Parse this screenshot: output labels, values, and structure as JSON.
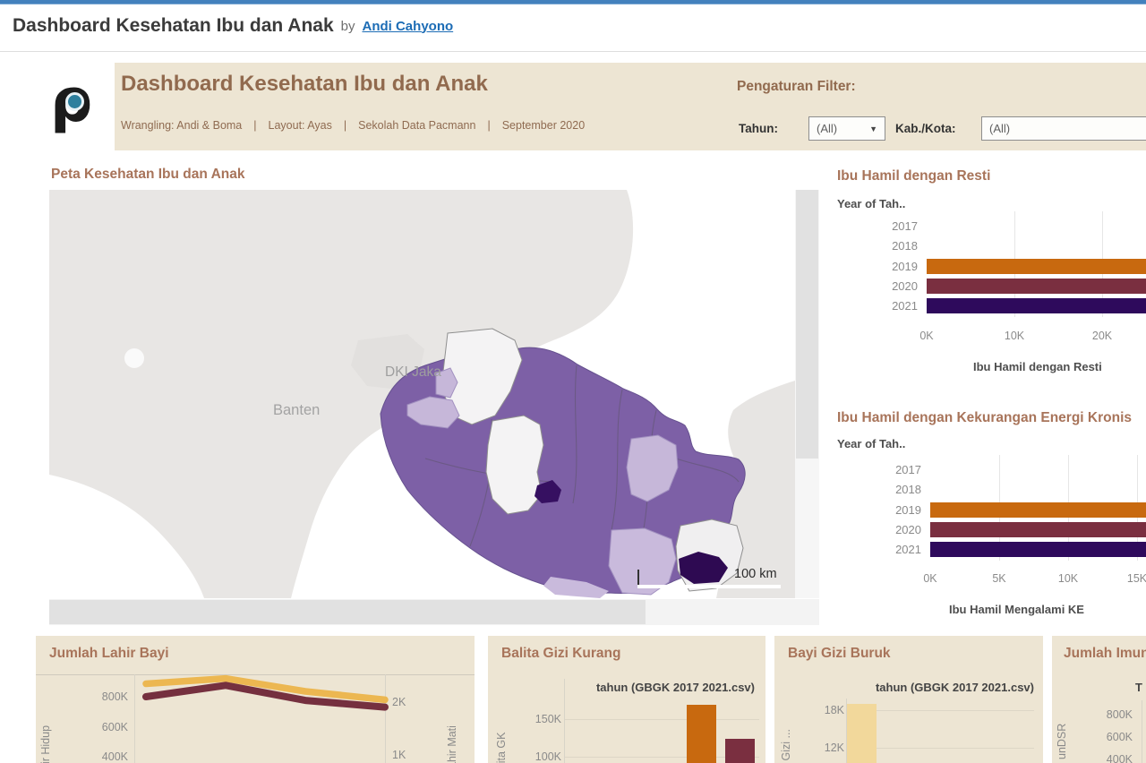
{
  "top_bar": {
    "title": "Dashboard Kesehatan Ibu dan Anak",
    "by": "by",
    "author_link": "Andi Cahyono"
  },
  "header": {
    "title": "Dashboard Kesehatan Ibu dan Anak",
    "credits": [
      "Wrangling: Andi & Boma",
      "Layout: Ayas",
      "Sekolah Data Pacmann",
      "September 2020"
    ],
    "separator": "|",
    "filter": {
      "heading": "Pengaturan Filter:",
      "tahun_label": "Tahun:",
      "tahun_value": "(All)",
      "kab_label": "Kab./Kota:",
      "kab_value": "(All)"
    }
  },
  "map": {
    "title": "Peta Kesehatan Ibu dan Anak",
    "labels": {
      "banten": "Banten",
      "dki": "DKI Jaka",
      "scale": "100 km"
    },
    "colors": {
      "region_medium": "#7d60a6",
      "region_light": "#c6b7d9",
      "region_dark": "#2e0a52",
      "region_none": "#f4f3f4",
      "base_land": "#e8e6e4"
    }
  },
  "colors": {
    "accent_orange": "#c8690f",
    "accent_maroon": "#7a2f40",
    "accent_darkpurple": "#2e0a5c",
    "accent_yellow": "#ecb751",
    "accent_lightyellow": "#f2d89b",
    "header_beige": "#ede5d3",
    "title_brown": "#a8745a"
  },
  "chart_data": [
    {
      "id": "ibu_resti",
      "type": "bar",
      "orientation": "horizontal",
      "title": "Ibu Hamil dengan Resti",
      "col_header": "Year of Tah..",
      "categories": [
        "2017",
        "2018",
        "2019",
        "2020",
        "2021"
      ],
      "values_k": [
        0,
        0,
        26,
        26,
        26
      ],
      "bar_colors": [
        null,
        null,
        "#c8690f",
        "#7a2f40",
        "#2e0a5c"
      ],
      "x_ticks": [
        "0K",
        "10K",
        "20K"
      ],
      "xlabel": "Ibu Hamil dengan Resti",
      "note": "2019-2021 bars extend past the visible right edge (>25K); 2017-2018 show no bars"
    },
    {
      "id": "ibu_kek",
      "type": "bar",
      "orientation": "horizontal",
      "title": "Ibu Hamil dengan Kekurangan Energi Kronis",
      "col_header": "Year of Tah..",
      "categories": [
        "2017",
        "2018",
        "2019",
        "2020",
        "2021"
      ],
      "values_k": [
        0,
        0,
        16,
        16,
        16
      ],
      "bar_colors": [
        null,
        null,
        "#c8690f",
        "#7a2f40",
        "#2e0a5c"
      ],
      "x_ticks": [
        "0K",
        "5K",
        "10K",
        "15K"
      ],
      "xlabel": "Ibu Hamil Mengalami KE",
      "note": "2019-2021 bars extend past the visible right edge (>15.5K)"
    },
    {
      "id": "lahir_bayi",
      "type": "line",
      "title": "Jumlah Lahir Bayi",
      "left_axis": {
        "label": "hir Hidup",
        "ticks": [
          "800K",
          "600K",
          "400K"
        ]
      },
      "right_axis": {
        "label": "ahir Mati",
        "ticks": [
          "2K",
          "1K"
        ]
      },
      "series": [
        {
          "name": "Lahir Hidup",
          "axis": "left",
          "color": "#ecb751",
          "values_k": [
            885,
            920,
            835,
            780
          ]
        },
        {
          "name": "Lahir Mati",
          "axis": "right",
          "color": "#75303f",
          "values": [
            2120,
            2340,
            2050,
            1920
          ]
        }
      ],
      "note": "x-axis labels cut off below the visible area"
    },
    {
      "id": "balita_gk",
      "type": "bar",
      "title": "Balita Gizi Kurang",
      "col_header": "tahun (GBGK 2017 2021.csv)",
      "ylabel": "alita GK",
      "y_ticks": [
        "150K",
        "100K"
      ],
      "bars": [
        {
          "col_index": 3,
          "value_k": 169,
          "color": "#c8690f"
        },
        {
          "col_index": 4,
          "value_k": 124,
          "color": "#7a2f40"
        }
      ],
      "note": "only the tops of the two right-most bars are visible"
    },
    {
      "id": "bayi_gb",
      "type": "bar",
      "title": "Bayi Gizi Buruk",
      "col_header": "tahun (GBGK 2017 2021.csv)",
      "ylabel": "yi Gizi ...",
      "y_ticks": [
        "18K",
        "12K"
      ],
      "bars": [
        {
          "col_index": 0,
          "value_k": 19,
          "color": "#f2d89b"
        }
      ],
      "note": "only the top of the first bar is visible"
    },
    {
      "id": "imun",
      "type": "bar",
      "title": "Jumlah Imun",
      "col_header": "T",
      "ylabel": "unDSR",
      "y_ticks": [
        "800K",
        "600K",
        "400K"
      ],
      "bars": [],
      "note": "panel mostly cut off at the right edge of the screenshot"
    }
  ]
}
